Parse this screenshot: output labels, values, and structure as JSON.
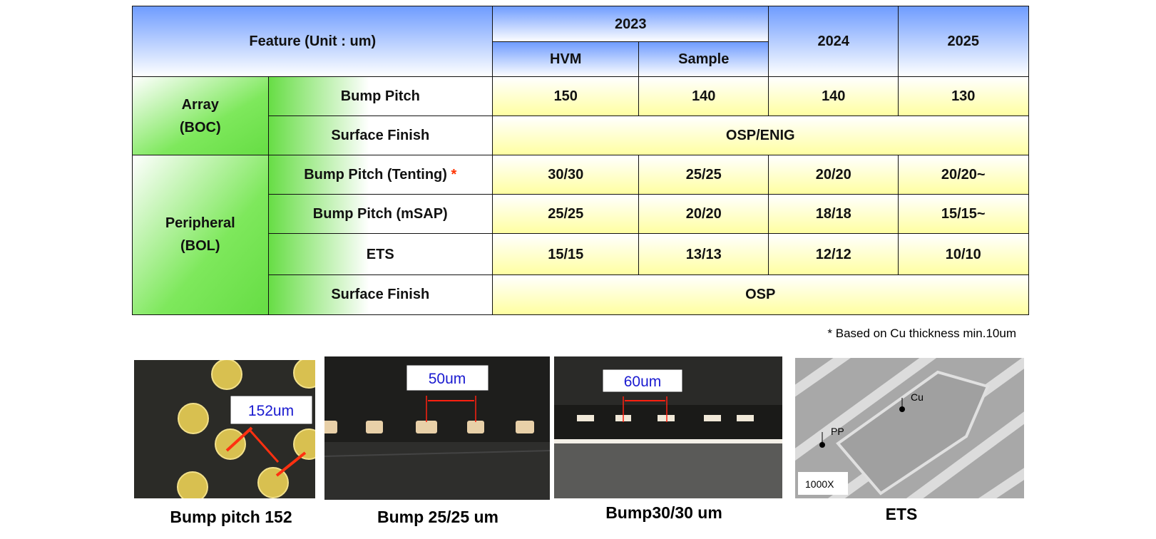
{
  "table": {
    "header": {
      "feature": "Feature (Unit : um)",
      "year_2023": "2023",
      "hvm": "HVM",
      "sample": "Sample",
      "year_2024": "2024",
      "year_2025": "2025"
    },
    "groups": [
      {
        "label": [
          "Array",
          "(BOC)"
        ],
        "rows": [
          {
            "feature": "Bump Pitch",
            "values": [
              "150",
              "140",
              "140",
              "130"
            ]
          },
          {
            "feature": "Surface Finish",
            "values": [
              "OSP/ENIG"
            ]
          }
        ]
      },
      {
        "label": [
          "Peripheral",
          "(BOL)"
        ],
        "rows": [
          {
            "feature": "Bump Pitch (Tenting)",
            "marker": "*",
            "values": [
              "30/30",
              "25/25",
              "20/20",
              "20/20~"
            ]
          },
          {
            "feature": "Bump Pitch (mSAP)",
            "values": [
              "25/25",
              "20/20",
              "18/18",
              "15/15~"
            ]
          },
          {
            "feature": "ETS",
            "values": [
              "15/15",
              "13/13",
              "12/12",
              "10/10"
            ]
          },
          {
            "feature": "Surface Finish",
            "values": [
              "OSP"
            ]
          }
        ]
      }
    ]
  },
  "note": "* Based on Cu thickness min.10um",
  "images": [
    {
      "caption": "Bump pitch 152",
      "labels": [
        "152um"
      ]
    },
    {
      "caption": "Bump 25/25 um",
      "labels": [
        "50um"
      ]
    },
    {
      "caption": "Bump30/30 um",
      "labels": [
        "60um"
      ]
    },
    {
      "caption": "ETS",
      "labels": [
        "Cu",
        "PP",
        "1000X"
      ]
    }
  ]
}
